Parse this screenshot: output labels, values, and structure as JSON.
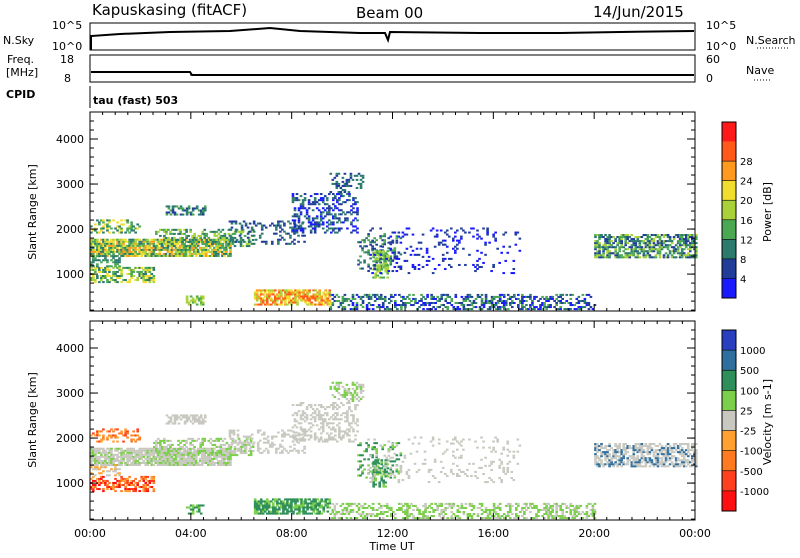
{
  "header": {
    "station": "Kapuskasing (fitACF)",
    "beam": "Beam 00",
    "date": "14/Jun/2015"
  },
  "top_panels": {
    "nsky_label": "N.Sky",
    "nsky_ticks": [
      "10^5",
      "10^0"
    ],
    "nsearch_label": "N.Search",
    "nsearch_ticks": [
      "10^5",
      "10^0"
    ],
    "freq_label_1": "Freq.",
    "freq_label_2": "[MHz]",
    "freq_ticks": [
      "18",
      "8"
    ],
    "nave_label": "Nave",
    "nave_ticks": [
      "60",
      "0"
    ],
    "cpid_label": "CPID",
    "cpid_value": "tau (fast) 503"
  },
  "chart_data": [
    {
      "type": "heatmap",
      "name": "power",
      "ylabel": "Slant Range [km]",
      "xlabel": "",
      "ylim": [
        180,
        4600
      ],
      "yticks": [
        "1000",
        "2000",
        "3000",
        "4000"
      ],
      "xticks": [
        "00:00",
        "04:00",
        "08:00",
        "12:00",
        "16:00",
        "20:00",
        "00:00"
      ],
      "colorbar": {
        "label": "Power [dB]",
        "ticks": [
          "4",
          "8",
          "12",
          "16",
          "20",
          "24",
          "28"
        ],
        "colors": [
          "#1a1aff",
          "#1f3d99",
          "#2c7a6d",
          "#4aa852",
          "#a9d23a",
          "#f0dd2e",
          "#ff9a1f",
          "#ff5a1a",
          "#ff1a1a"
        ]
      },
      "regions": [
        {
          "t0": 0.0,
          "t1": 5.5,
          "r0": 1400,
          "r1": 1800,
          "level": "Power"
        },
        {
          "t0": 7.0,
          "t1": 9.5,
          "r0": 300,
          "r1": 600,
          "level": "Power"
        },
        {
          "t0": 8.0,
          "t1": 11.0,
          "r0": 1800,
          "r1": 3200,
          "level": "Power"
        },
        {
          "t0": 20.0,
          "t1": 24.0,
          "r0": 1400,
          "r1": 1800,
          "level": "Power"
        }
      ]
    },
    {
      "type": "heatmap",
      "name": "velocity",
      "ylabel": "Slant Range [km]",
      "xlabel": "Time UT",
      "ylim": [
        180,
        4600
      ],
      "yticks": [
        "1000",
        "2000",
        "3000",
        "4000"
      ],
      "xticks": [
        "00:00",
        "04:00",
        "08:00",
        "12:00",
        "16:00",
        "20:00",
        "00:00"
      ],
      "colorbar": {
        "label": "Velocity [m s-1]",
        "ticks": [
          "1000",
          "500",
          "100",
          "25",
          "-25",
          "-100",
          "-500",
          "-1000"
        ],
        "colors": [
          "#2a3fbf",
          "#2f6f9f",
          "#2e8f5a",
          "#7ccf4a",
          "#c8c8c0",
          "#ffa030",
          "#ff7a20",
          "#ff4020",
          "#ff1010"
        ]
      }
    }
  ]
}
